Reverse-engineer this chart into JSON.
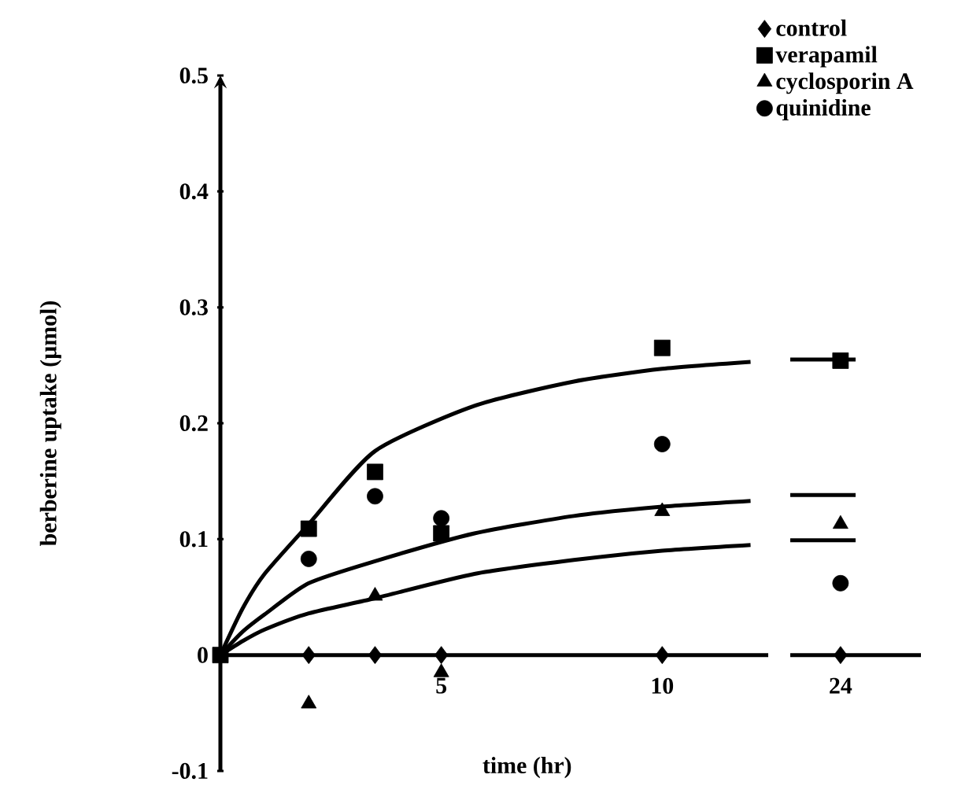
{
  "chart_data": [
    {
      "type": "scatter",
      "xlabel": "time (hr)",
      "ylabel": "berberine uptake (µmol)",
      "xlim": [
        0,
        12.4
      ],
      "ylim": [
        -0.1,
        0.5
      ],
      "xticks": [
        5,
        10
      ],
      "yticks": [
        -0.1,
        0,
        0.1,
        0.2,
        0.3,
        0.4,
        0.5
      ],
      "legend": "top right",
      "series": [
        {
          "name": "control",
          "marker": "diamond",
          "color": "#000000",
          "x": [
            2,
            3.5,
            5,
            10
          ],
          "values": [
            0,
            0,
            0,
            0
          ]
        },
        {
          "name": "verapamil",
          "marker": "square",
          "color": "#000000",
          "x": [
            0,
            2,
            3.5,
            5,
            10
          ],
          "values": [
            0,
            0.109,
            0.158,
            0.105,
            0.265
          ]
        },
        {
          "name": "cyclosporin A",
          "marker": "triangle",
          "color": "#000000",
          "x": [
            2,
            3.5,
            5,
            10
          ],
          "values": [
            -0.042,
            0.051,
            -0.015,
            0.124
          ]
        },
        {
          "name": "quinidine",
          "marker": "circle",
          "color": "#000000",
          "x": [
            2,
            3.5,
            5,
            10
          ],
          "values": [
            0.083,
            0.137,
            0.118,
            0.182
          ]
        },
        {
          "type": "line",
          "color": "#000000",
          "x": [
            0,
            0.5,
            1,
            2,
            3.5,
            5.75,
            8,
            10,
            12
          ],
          "values": [
            0,
            0.04,
            0.07,
            0.113,
            0.176,
            0.215,
            0.236,
            0.247,
            0.253
          ]
        },
        {
          "type": "line",
          "color": "#000000",
          "x": [
            0,
            0.5,
            1,
            2,
            3.5,
            5.75,
            8,
            10,
            12
          ],
          "values": [
            0,
            0.02,
            0.035,
            0.062,
            0.081,
            0.105,
            0.12,
            0.128,
            0.133
          ]
        },
        {
          "type": "line",
          "color": "#000000",
          "x": [
            0,
            0.5,
            1,
            2,
            3.5,
            5.75,
            8,
            10,
            12
          ],
          "values": [
            0,
            0.012,
            0.022,
            0.036,
            0.049,
            0.07,
            0.082,
            0.09,
            0.095
          ]
        }
      ]
    },
    {
      "type": "scatter",
      "categories": [
        "24"
      ],
      "ylim": [
        -0.1,
        0.5
      ],
      "tick_labels": "x",
      "series": [
        {
          "marker": "diamond",
          "color": "#000000",
          "x": [
            "24"
          ],
          "values": [
            0
          ]
        },
        {
          "marker": "square",
          "color": "#000000",
          "x": [
            "24"
          ],
          "values": [
            0.254
          ]
        },
        {
          "marker": "triangle",
          "color": "#000000",
          "x": [
            "24"
          ],
          "values": [
            0.113
          ]
        },
        {
          "marker": "circle",
          "color": "#000000",
          "x": [
            "24"
          ],
          "values": [
            0.062
          ]
        }
      ],
      "ref_lines": [
        {
          "axis": "y",
          "value": 0.255,
          "color": "#000000"
        },
        {
          "axis": "y",
          "value": 0.138,
          "color": "#000000"
        },
        {
          "axis": "y",
          "value": 0.099,
          "color": "#000000"
        }
      ]
    }
  ]
}
